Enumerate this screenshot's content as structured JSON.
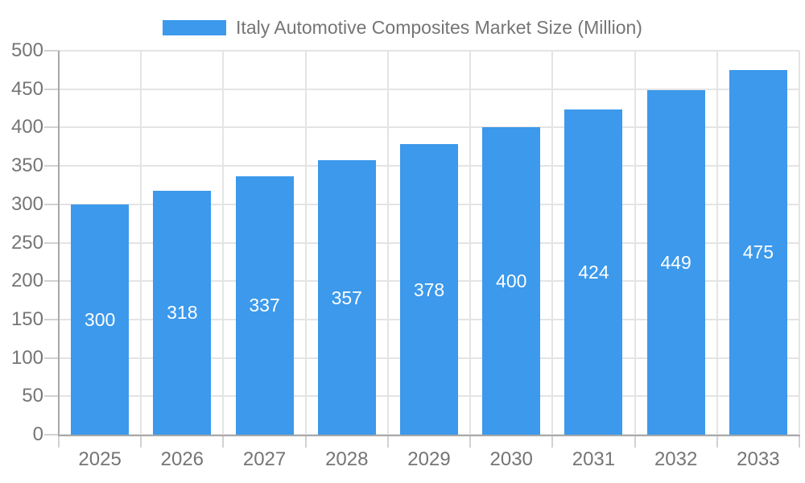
{
  "chart_data": {
    "type": "bar",
    "title": "Italy Automotive Composites Market Size (Million)",
    "categories": [
      "2025",
      "2026",
      "2027",
      "2028",
      "2029",
      "2030",
      "2031",
      "2032",
      "2033"
    ],
    "values": [
      300,
      318,
      337,
      357,
      378,
      400,
      424,
      449,
      475
    ],
    "series": [
      {
        "name": "Italy Automotive Composites Market Size (Million)",
        "values": [
          300,
          318,
          337,
          357,
          378,
          400,
          424,
          449,
          475
        ]
      }
    ],
    "xlabel": "",
    "ylabel": "",
    "ylim": [
      0,
      500
    ],
    "y_ticks": [
      0,
      50,
      100,
      150,
      200,
      250,
      300,
      350,
      400,
      450,
      500
    ],
    "grid": true,
    "legend_position": "top",
    "bar_labels_inside": true
  },
  "colors": {
    "bar_fill": "#3C99EB",
    "bar_label_text": "#FFFFFF",
    "axis_text": "#757575",
    "legend_text": "#757575",
    "gridline": "#E4E4E4",
    "tick_mark": "#D2D2D2",
    "axis_line": "#A9A9A9",
    "background": "#FFFFFF"
  },
  "legend": {
    "label": "Italy Automotive Composites Market Size (Million)"
  }
}
